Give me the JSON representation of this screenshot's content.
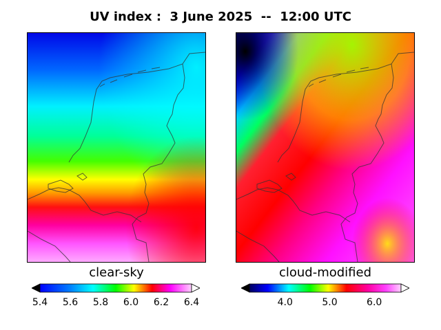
{
  "title": "UV index :  3 June 2025  --  12:00 UTC",
  "panels": {
    "left": {
      "label": "clear-sky",
      "colorbar": {
        "min": 5.4,
        "max": 6.4,
        "ticks": [
          "5.4",
          "5.6",
          "5.8",
          "6.0",
          "6.2",
          "6.4"
        ]
      }
    },
    "right": {
      "label": "cloud-modified",
      "colorbar": {
        "min": 3.2,
        "max": 6.6,
        "ticks": [
          "4.0",
          "5.0",
          "6.0"
        ]
      }
    }
  },
  "colors": {
    "scale": [
      "#000000",
      "#0000ff",
      "#00ffff",
      "#00ff00",
      "#ffff00",
      "#ff0000",
      "#ff00ff",
      "#ffffff"
    ]
  }
}
